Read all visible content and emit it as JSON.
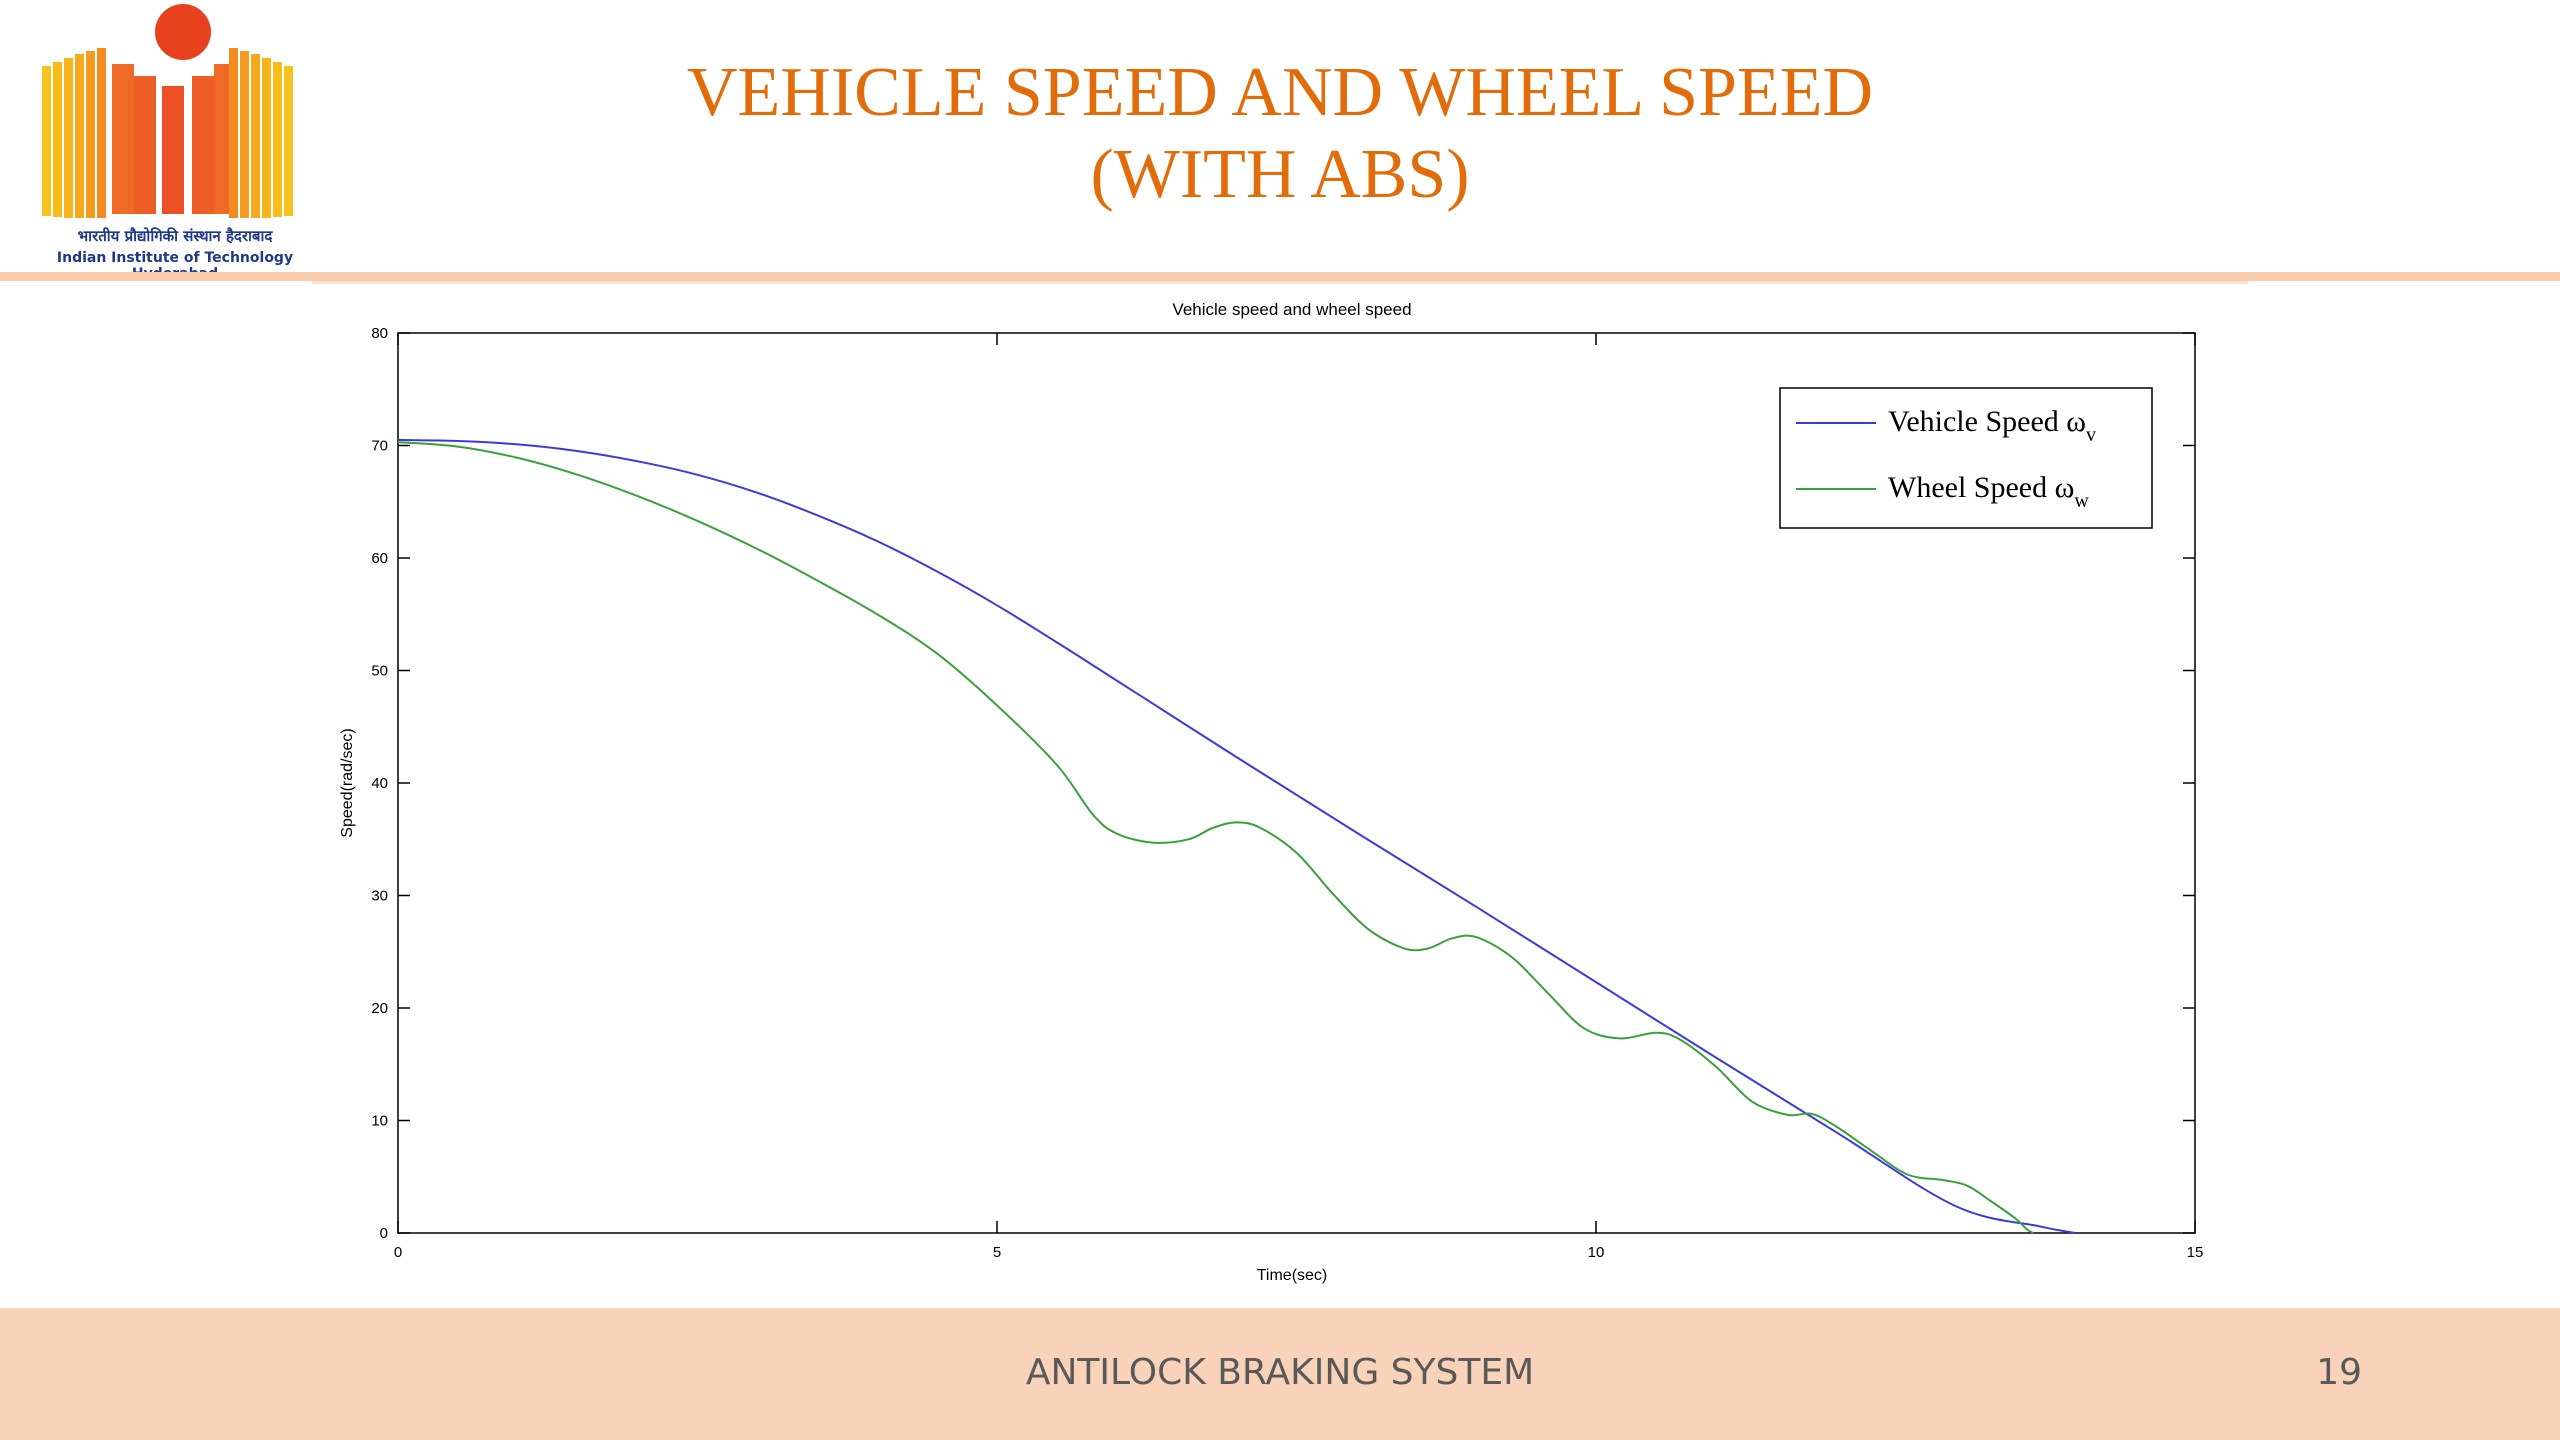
{
  "slide": {
    "title_line1": "VEHICLE SPEED AND WHEEL SPEED",
    "title_line2": "(WITH ABS)",
    "footer_text": "ANTILOCK BRAKING SYSTEM",
    "slide_number": "19"
  },
  "logo": {
    "hindi": "भारतीय प्रौद्योगिकी संस्थान हैदराबाद",
    "english": "Indian Institute of Technology Hyderabad"
  },
  "colors": {
    "title": "#e36c0a",
    "accent_band": "#f8cbad",
    "footer_band": "#f8d3b9",
    "vehicle_speed": "#3b3bdc",
    "wheel_speed": "#3aa13a"
  },
  "chart_data": {
    "type": "line",
    "title": "Vehicle speed and wheel speed",
    "xlabel": "Time(sec)",
    "ylabel": "Speed(rad/sec)",
    "xlim": [
      0,
      15
    ],
    "ylim": [
      0,
      80
    ],
    "xticks": [
      0,
      5,
      10,
      15
    ],
    "yticks": [
      0,
      10,
      20,
      30,
      40,
      50,
      60,
      70,
      80
    ],
    "grid": false,
    "legend_position": "top-right",
    "series": [
      {
        "name": "Vehicle Speed ω",
        "name_base": "Vehicle Speed ω",
        "name_sub": "v",
        "color": "#3b3bdc",
        "x": [
          0,
          0.5,
          1,
          1.5,
          2,
          2.5,
          3,
          3.5,
          4,
          4.5,
          5,
          5.5,
          6,
          7,
          8,
          9,
          10,
          11,
          12,
          13,
          13.7,
          14.0
        ],
        "y": [
          70.5,
          70.4,
          70.1,
          69.5,
          68.6,
          67.4,
          65.8,
          63.8,
          61.5,
          58.8,
          55.8,
          52.5,
          49.1,
          42.3,
          35.6,
          29.0,
          22.3,
          15.6,
          9.0,
          2.4,
          0.6,
          0
        ]
      },
      {
        "name": "Wheel Speed ω",
        "name_base": "Wheel Speed ω",
        "name_sub": "w",
        "color": "#3aa13a",
        "x": [
          0,
          0.5,
          1,
          1.5,
          2,
          2.5,
          3,
          3.5,
          4,
          4.5,
          5,
          5.5,
          5.8,
          6.0,
          6.3,
          6.6,
          6.8,
          7.0,
          7.2,
          7.5,
          7.8,
          8.1,
          8.4,
          8.6,
          8.8,
          9.0,
          9.3,
          9.6,
          9.9,
          10.2,
          10.5,
          10.7,
          11.0,
          11.3,
          11.6,
          11.8,
          12.0,
          12.3,
          12.6,
          12.9,
          13.1,
          13.3,
          13.5,
          13.6,
          13.65
        ],
        "y": [
          70.3,
          69.9,
          68.9,
          67.4,
          65.5,
          63.3,
          60.8,
          58.0,
          55.0,
          51.5,
          46.9,
          41.6,
          37.2,
          35.5,
          34.7,
          35.0,
          36.0,
          36.5,
          36.0,
          33.8,
          30.2,
          27.0,
          25.3,
          25.3,
          26.2,
          26.3,
          24.5,
          21.3,
          18.2,
          17.3,
          17.8,
          17.2,
          14.8,
          11.7,
          10.5,
          10.6,
          9.5,
          7.3,
          5.2,
          4.7,
          4.2,
          2.8,
          1.3,
          0.3,
          0
        ]
      }
    ]
  }
}
